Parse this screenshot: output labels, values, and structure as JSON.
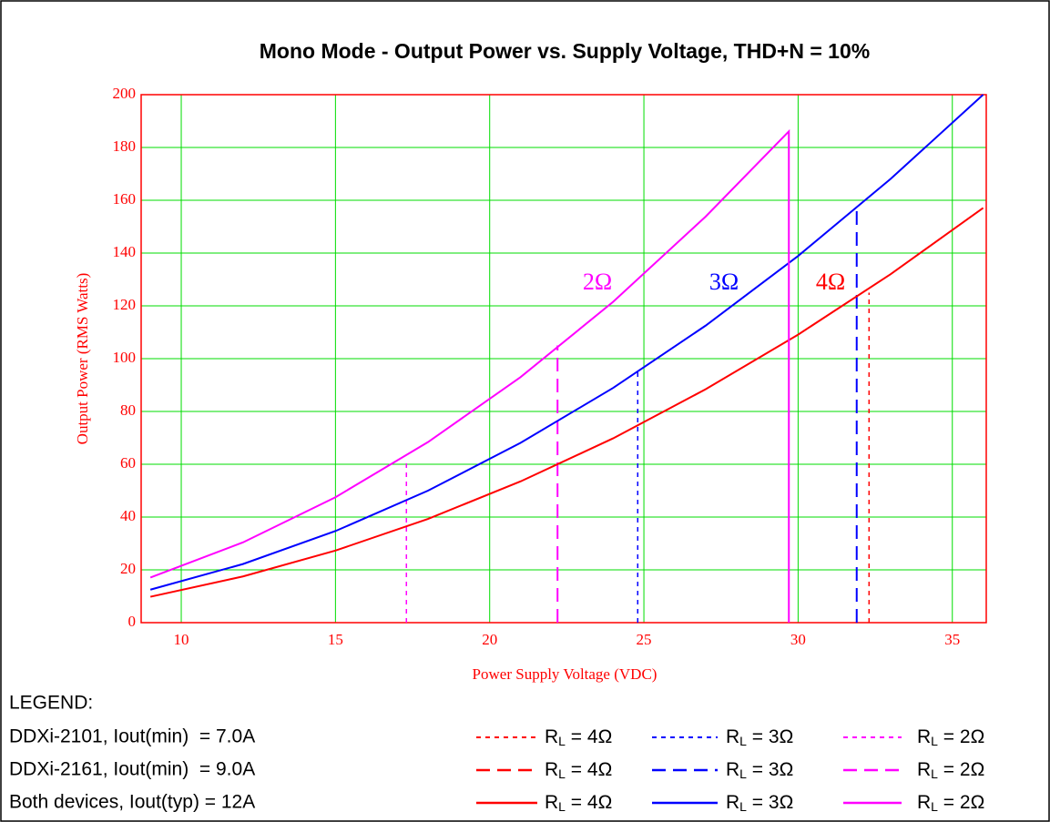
{
  "chart_data": {
    "type": "line",
    "title": "Mono Mode - Output Power vs. Supply Voltage, THD+N = 10%",
    "xlabel": "Power Supply Voltage (VDC)",
    "ylabel": "Output Power (RMS Watts)",
    "xlim": [
      8.7,
      36.1
    ],
    "ylim": [
      0,
      200
    ],
    "xticks": [
      10,
      15,
      20,
      25,
      30,
      35
    ],
    "yticks": [
      0,
      20,
      40,
      60,
      80,
      100,
      120,
      140,
      160,
      180,
      200
    ],
    "grid": true,
    "series": [
      {
        "name": "4Ω",
        "color": "#ff0000",
        "x": [
          9,
          12,
          15,
          18,
          21,
          24,
          27,
          30,
          33,
          36
        ],
        "values": [
          9.8,
          17.5,
          27.3,
          39.3,
          53.5,
          69.8,
          88.4,
          109.1,
          132,
          157.1
        ]
      },
      {
        "name": "3Ω",
        "color": "#0000ff",
        "x": [
          9,
          12,
          15,
          18,
          21,
          24,
          27,
          30,
          33,
          36
        ],
        "values": [
          12.5,
          22.2,
          34.7,
          50,
          68.1,
          88.9,
          112.5,
          138.9,
          168.1,
          200
        ]
      },
      {
        "name": "2Ω",
        "color": "#ff00ff",
        "x": [
          9,
          12,
          15,
          18,
          21,
          24,
          27,
          29.7,
          29.7
        ],
        "values": [
          17.1,
          30.4,
          47.5,
          68.4,
          93,
          121.5,
          153.8,
          186.1,
          0
        ]
      }
    ],
    "markers": [
      {
        "x": 17.3,
        "value": 62,
        "color": "#ff00ff",
        "dash": "short"
      },
      {
        "x": 24.8,
        "value": 96,
        "color": "#0000ff",
        "dash": "short"
      },
      {
        "x": 32.3,
        "value": 125,
        "color": "#ff0000",
        "dash": "short"
      },
      {
        "x": 22.2,
        "value": 105,
        "color": "#ff00ff",
        "dash": "long"
      },
      {
        "x": 31.9,
        "value": 158,
        "color": "#0000ff",
        "dash": "long"
      }
    ],
    "legend": {
      "title": "LEGEND:",
      "rows": [
        {
          "label": "DDXi-2101, Iout(min)  = 7.0A",
          "dash": "short"
        },
        {
          "label": "DDXi-2161, Iout(min)  = 9.0A",
          "dash": "long"
        },
        {
          "label": "Both devices, Iout(typ) = 12A",
          "dash": "solid"
        }
      ],
      "entries": [
        {
          "symbol": "R",
          "sub": "L",
          "text": " = 4Ω",
          "color": "#ff0000"
        },
        {
          "symbol": "R",
          "sub": "L",
          "text": " = 3Ω",
          "color": "#0000ff"
        },
        {
          "symbol": "R",
          "sub": "L",
          "text": " = 2Ω",
          "color": "#ff00ff"
        }
      ]
    }
  }
}
